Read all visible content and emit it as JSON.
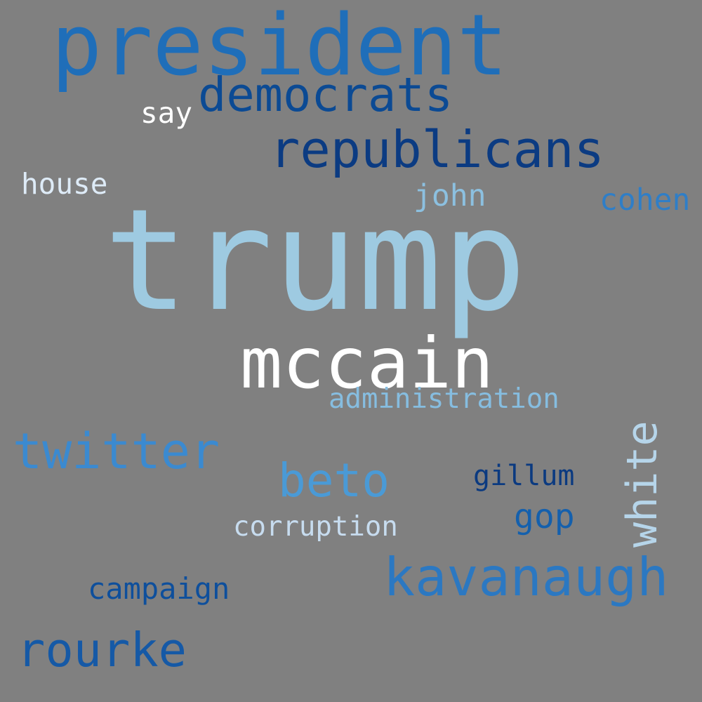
{
  "cloud": {
    "background": "#808080",
    "words": {
      "trump": {
        "text": "trump",
        "color": "#9ecae1"
      },
      "president": {
        "text": "president",
        "color": "#1f6eb9"
      },
      "mccain": {
        "text": "mccain",
        "color": "#ffffff"
      },
      "republicans": {
        "text": "republicans",
        "color": "#0b3b82"
      },
      "kavanaugh": {
        "text": "kavanaugh",
        "color": "#2b78c2"
      },
      "democrats": {
        "text": "democrats",
        "color": "#0b4a94"
      },
      "twitter": {
        "text": "twitter",
        "color": "#3b8ad0"
      },
      "rourke": {
        "text": "rourke",
        "color": "#1559a6"
      },
      "beto": {
        "text": "beto",
        "color": "#4a9ad6"
      },
      "white": {
        "text": "white",
        "color": "#b6d5ea"
      },
      "gop": {
        "text": "gop",
        "color": "#1460ad"
      },
      "cohen": {
        "text": "cohen",
        "color": "#2f7ec7"
      },
      "john": {
        "text": "john",
        "color": "#8cc0e0"
      },
      "administration": {
        "text": "administration",
        "color": "#86bde0"
      },
      "house": {
        "text": "house",
        "color": "#deebf7"
      },
      "gillum": {
        "text": "gillum",
        "color": "#0b3a80"
      },
      "corruption": {
        "text": "corruption",
        "color": "#c7dcef"
      },
      "campaign": {
        "text": "campaign",
        "color": "#0e4f9c"
      },
      "say": {
        "text": "say",
        "color": "#ffffff"
      }
    }
  }
}
